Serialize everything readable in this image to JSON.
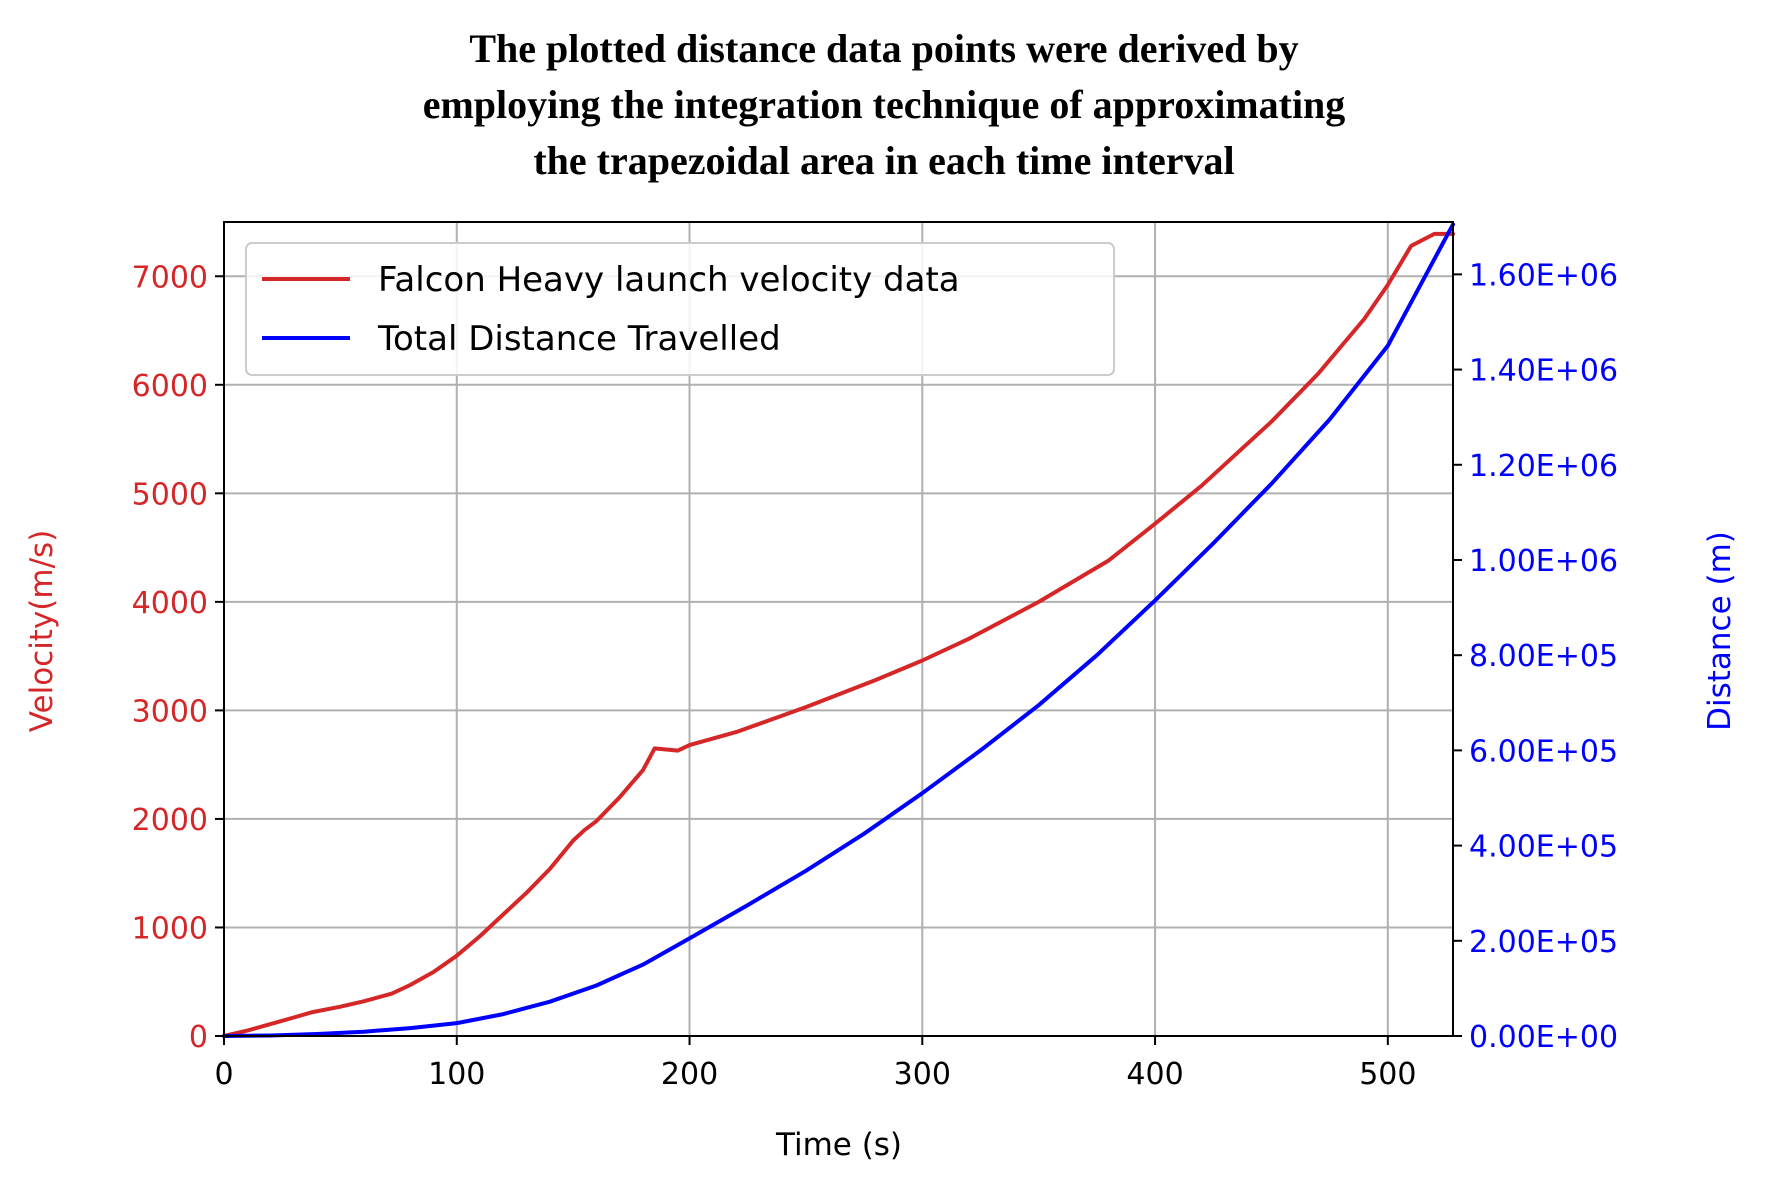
{
  "chart_data": {
    "type": "line",
    "title_lines": [
      "The plotted distance data points were derived by",
      "employing the integration technique of approximating",
      "the trapezoidal area in each time interval"
    ],
    "xlabel": "Time (s)",
    "ylabel": "Velocity(m/s)",
    "y2label": "Distance (m)",
    "xlim": [
      0,
      528
    ],
    "ylim": [
      0,
      7500
    ],
    "y2lim": [
      0,
      1710000
    ],
    "x_ticks": [
      0,
      100,
      200,
      300,
      400,
      500
    ],
    "x_tick_labels": [
      "0",
      "100",
      "200",
      "300",
      "400",
      "500"
    ],
    "y_ticks": [
      0,
      1000,
      2000,
      3000,
      4000,
      5000,
      6000,
      7000
    ],
    "y_tick_labels": [
      "0",
      "1000",
      "2000",
      "3000",
      "4000",
      "5000",
      "6000",
      "7000"
    ],
    "y2_ticks": [
      0,
      200000,
      400000,
      600000,
      800000,
      1000000,
      1200000,
      1400000,
      1600000
    ],
    "y2_tick_labels": [
      "0.00E+00",
      "2.00E+05",
      "4.00E+05",
      "6.00E+05",
      "8.00E+05",
      "1.00E+06",
      "1.20E+06",
      "1.40E+06",
      "1.60E+06"
    ],
    "grid": true,
    "legend_position": "top-left",
    "colors": {
      "velocity": "#d62728",
      "distance": "#0000ff",
      "grid": "#b0b0b0",
      "axis": "#000000"
    },
    "series": [
      {
        "name": "Falcon Heavy launch velocity data",
        "axis": "left",
        "x": [
          0,
          10,
          20,
          30,
          38,
          50,
          60,
          72,
          80,
          90,
          100,
          110,
          120,
          130,
          140,
          150,
          155,
          160,
          170,
          180,
          185,
          195,
          200,
          220,
          250,
          280,
          300,
          320,
          350,
          380,
          400,
          420,
          450,
          470,
          490,
          500,
          510,
          520,
          528
        ],
        "y": [
          0,
          50,
          110,
          170,
          220,
          270,
          320,
          390,
          470,
          590,
          740,
          920,
          1120,
          1320,
          1540,
          1800,
          1900,
          1980,
          2200,
          2450,
          2650,
          2630,
          2680,
          2800,
          3030,
          3280,
          3460,
          3660,
          4000,
          4380,
          4720,
          5070,
          5660,
          6100,
          6610,
          6920,
          7280,
          7390,
          7390
        ]
      },
      {
        "name": "Total Distance Travelled",
        "axis": "right",
        "x": [
          0,
          20,
          40,
          60,
          80,
          100,
          120,
          140,
          160,
          180,
          200,
          225,
          250,
          275,
          300,
          325,
          350,
          375,
          400,
          425,
          450,
          475,
          500,
          528
        ],
        "y": [
          0,
          1000,
          4300,
          9000,
          16500,
          27000,
          46000,
          72000,
          106000,
          150000,
          205000,
          275000,
          347000,
          425000,
          510000,
          600000,
          695000,
          800000,
          915000,
          1035000,
          1160000,
          1295000,
          1450000,
          1705000
        ]
      }
    ]
  }
}
